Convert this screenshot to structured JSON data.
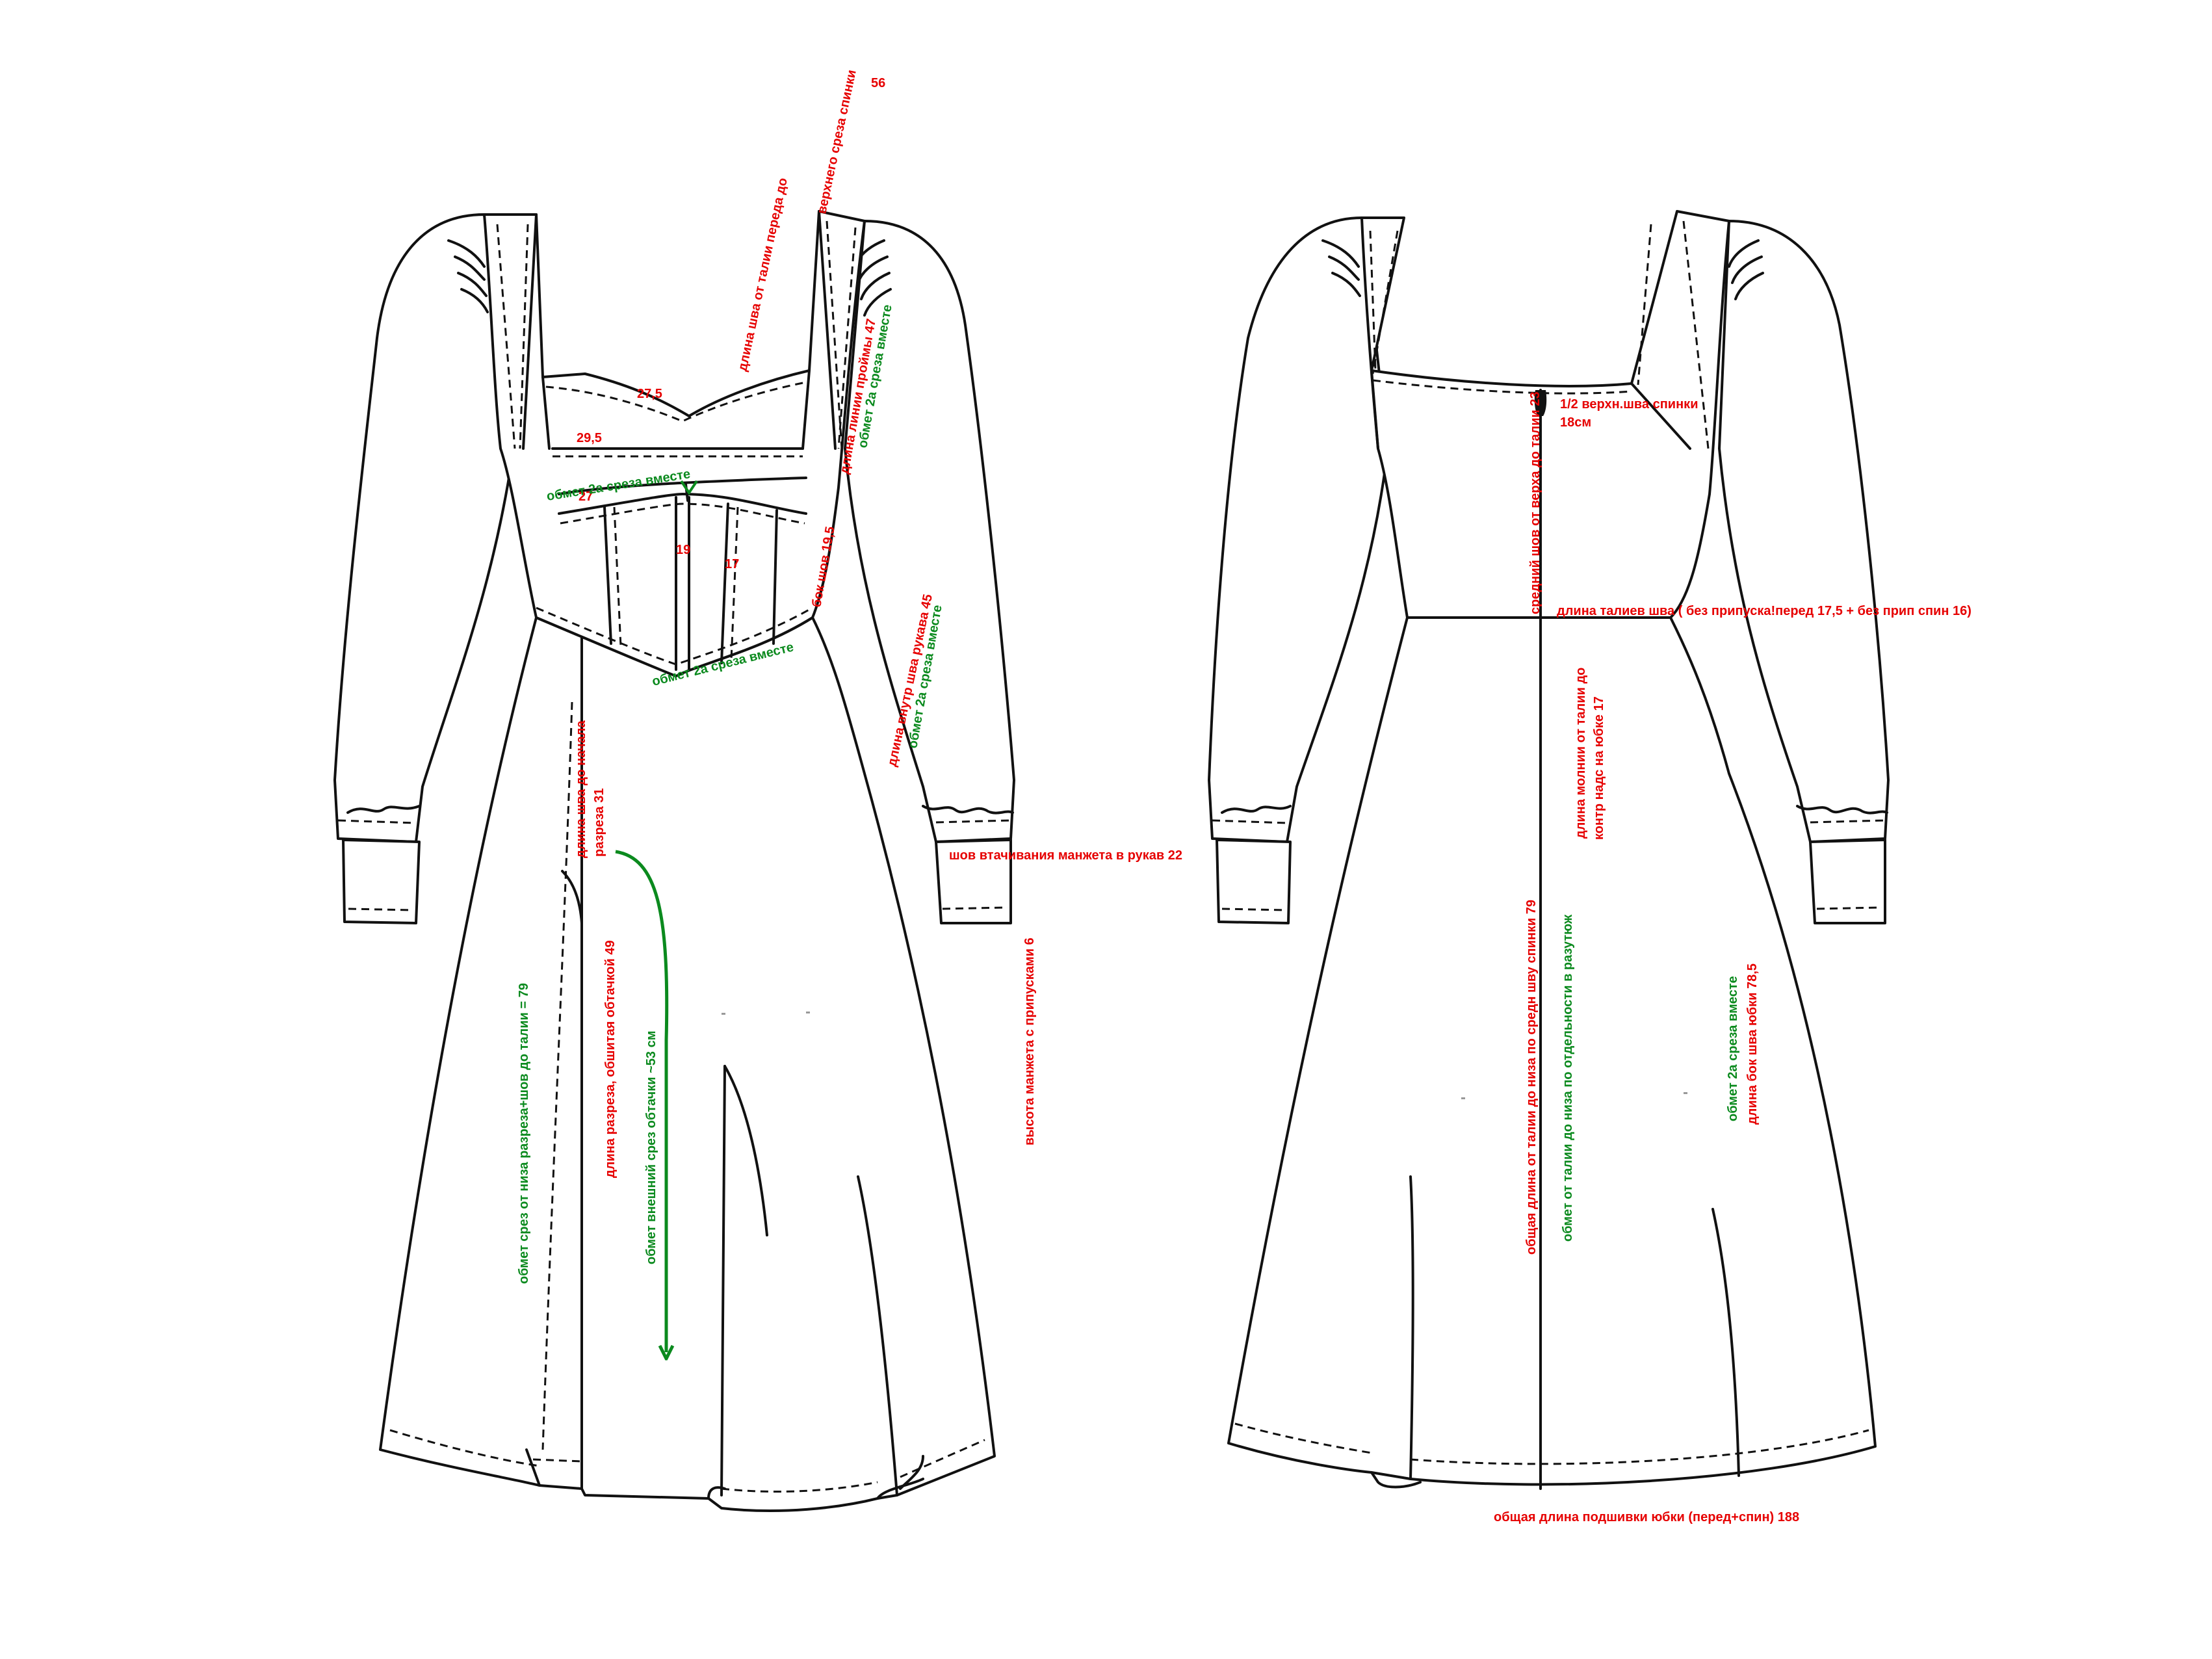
{
  "colors": {
    "red": "#e60000",
    "green": "#0b8a1e",
    "line": "#111111",
    "background": "#ffffff"
  },
  "front": {
    "label_top_length_a": "длина шва от талии переда до",
    "label_top_length_b": "верхнего среза спинки",
    "value_top_length": "56",
    "value_neckline": "27,5",
    "value_upper_band": "29,5",
    "value_lower_band": "27",
    "overlock_band": "обмет 2а среза вместе",
    "value_panel_center": "19",
    "value_panel_side": "17",
    "label_armhole": "длина линии проймы 47",
    "overlock_armhole": "обмет 2а среза вместе",
    "label_side_seam": "бок шов 19,5",
    "label_inner_sleeve": "длина внутр шва рукава 45",
    "overlock_sleeve": "обмет 2а среза вместе",
    "overlock_waist": "обмет 2а среза вместе",
    "label_slit_start_a": "длина шва до начала",
    "label_slit_start_b": "разреза 31",
    "label_cuff_seam": "шов втачивания манжета в рукав 22",
    "label_cuff_height": "высота манжета с припусками 6",
    "label_slit_length": "длина разреза, обшитая обтачкой 49",
    "label_facing_overlock": "обмет внешний срез обтачки ~53 см",
    "label_slit_overlock": "обмет срез от низа разреза+шов до талии = 79"
  },
  "back": {
    "label_center_seam": "средний шов от верха до талии 23",
    "label_half_top_a": "1/2 верхн.шва спинки",
    "label_half_top_b": "18см",
    "label_waist_seam": "длина талиев шва ( без припуска!перед 17,5 + без прип спин 16)",
    "label_zipper_a": "длина молнии от талии до",
    "label_zipper_b": "контр надс на юбке 17",
    "label_total_center": "общая длина от талии до низа по средн шву спинки 79",
    "label_total_separate": "обмет от талии до низа по отдельности в разутюж",
    "overlock_side": "обмет 2а среза вместе",
    "label_side_skirt": "длина бок шва юбки 78,5",
    "label_hem": "общая длина подшивки юбки (перед+спин) 188"
  }
}
